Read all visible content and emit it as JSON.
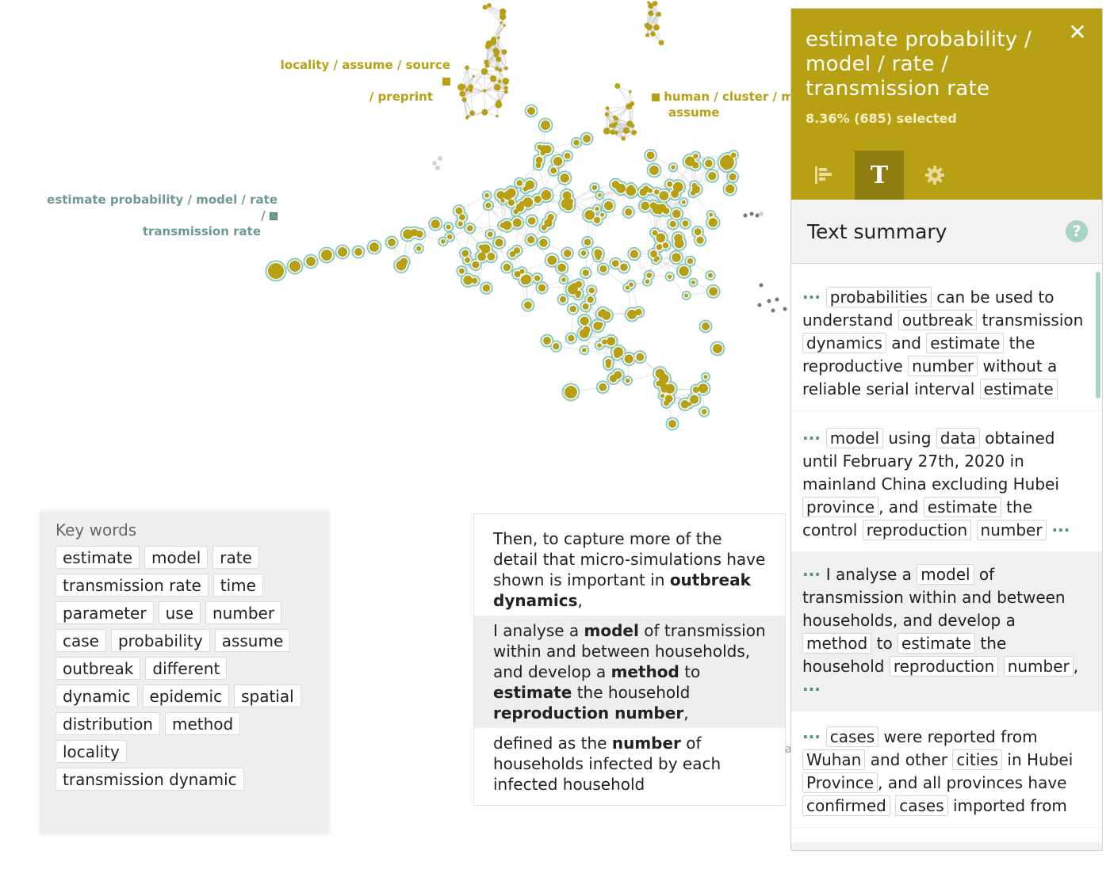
{
  "graph": {
    "labels": [
      {
        "text_lines": [
          "locality / assume / source",
          "/ preprint"
        ]
      },
      {
        "text_lines": [
          "human / cluster / m",
          "assume"
        ]
      },
      {
        "text_lines": [
          "estimate probability / model / rate /",
          "transmission rate"
        ]
      }
    ],
    "colors": {
      "gold": "#b8a014",
      "teal": "#7ec4bb",
      "edge": "#cccccc",
      "gray": "#777777"
    }
  },
  "keywords": {
    "title": "Key words",
    "rows": [
      [
        "estimate",
        "model",
        "rate"
      ],
      [
        "transmission rate",
        "time"
      ],
      [
        "parameter",
        "use",
        "number"
      ],
      [
        "case",
        "probability",
        "assume"
      ],
      [
        "outbreak",
        "different"
      ],
      [
        "dynamic",
        "epidemic",
        "spatial"
      ],
      [
        "distribution",
        "method"
      ],
      [
        "locality"
      ],
      [
        "transmission dynamic"
      ]
    ]
  },
  "context": {
    "p1": {
      "pre": "Then, to capture more of the detail that micro-simulations have shown is important in ",
      "bold": "outbreak dynamics",
      "post": ","
    },
    "p2": {
      "a": "I analyse a ",
      "b1": "model",
      "c": " of transmission within and between households, and develop a ",
      "b2": "method",
      "d": " to ",
      "b3": "estimate",
      "e": " the household ",
      "b4": "reproduction number",
      "f": ","
    },
    "p3": {
      "a": "defined as the ",
      "b1": "number",
      "c": " of households infected by each infected household"
    }
  },
  "panel": {
    "title": "estimate probability / model / rate / transmission rate",
    "selected": "8.36% (685) selected",
    "close_icon": "close-icon",
    "tabs": [
      "bar-chart-icon",
      "text-icon",
      "gear-icon"
    ],
    "tab_text_glyph": "T",
    "summary_title": "Text summary",
    "help_glyph": "?",
    "ellipsis": "···",
    "snippets": [
      [
        {
          "t": "probabilities",
          "k": 1
        },
        {
          "t": " can be used to understand "
        },
        {
          "t": "outbreak",
          "k": 1
        },
        {
          "t": " transmission "
        },
        {
          "t": "dynamics",
          "k": 1
        },
        {
          "t": " and "
        },
        {
          "t": "estimate",
          "k": 1
        },
        {
          "t": " the reproductive "
        },
        {
          "t": "number",
          "k": 1
        },
        {
          "t": " without a reliable serial interval "
        },
        {
          "t": "estimate",
          "k": 1
        }
      ],
      [
        {
          "t": "model",
          "k": 1
        },
        {
          "t": " using "
        },
        {
          "t": "data",
          "k": 1
        },
        {
          "t": " obtained until February 27th, 2020 in mainland China excluding Hubei "
        },
        {
          "t": "province",
          "k": 1
        },
        {
          "t": ", and "
        },
        {
          "t": "estimate",
          "k": 1
        },
        {
          "t": " the control "
        },
        {
          "t": "reproduction",
          "k": 1
        },
        {
          "t": " "
        },
        {
          "t": "number",
          "k": 1
        }
      ],
      [
        {
          "t": " I analyse a "
        },
        {
          "t": "model",
          "k": 1
        },
        {
          "t": " of transmission within and between households, and develop a "
        },
        {
          "t": "method",
          "k": 1
        },
        {
          "t": " to "
        },
        {
          "t": "estimate",
          "k": 1
        },
        {
          "t": " the household "
        },
        {
          "t": "reproduction",
          "k": 1
        },
        {
          "t": " "
        },
        {
          "t": "number",
          "k": 1
        },
        {
          "t": ", "
        }
      ],
      [
        {
          "t": "cases",
          "k": 1
        },
        {
          "t": " were reported from "
        },
        {
          "t": "Wuhan",
          "k": 1
        },
        {
          "t": " and other "
        },
        {
          "t": "cities",
          "k": 1
        },
        {
          "t": " in Hubei "
        },
        {
          "t": "Province",
          "k": 1
        },
        {
          "t": ", and all provinces have "
        },
        {
          "t": "confirmed",
          "k": 1
        },
        {
          "t": " "
        },
        {
          "t": "cases",
          "k": 1
        },
        {
          "t": " imported from"
        }
      ]
    ],
    "snippet_end_ellipsis": [
      false,
      true,
      true,
      false
    ]
  }
}
